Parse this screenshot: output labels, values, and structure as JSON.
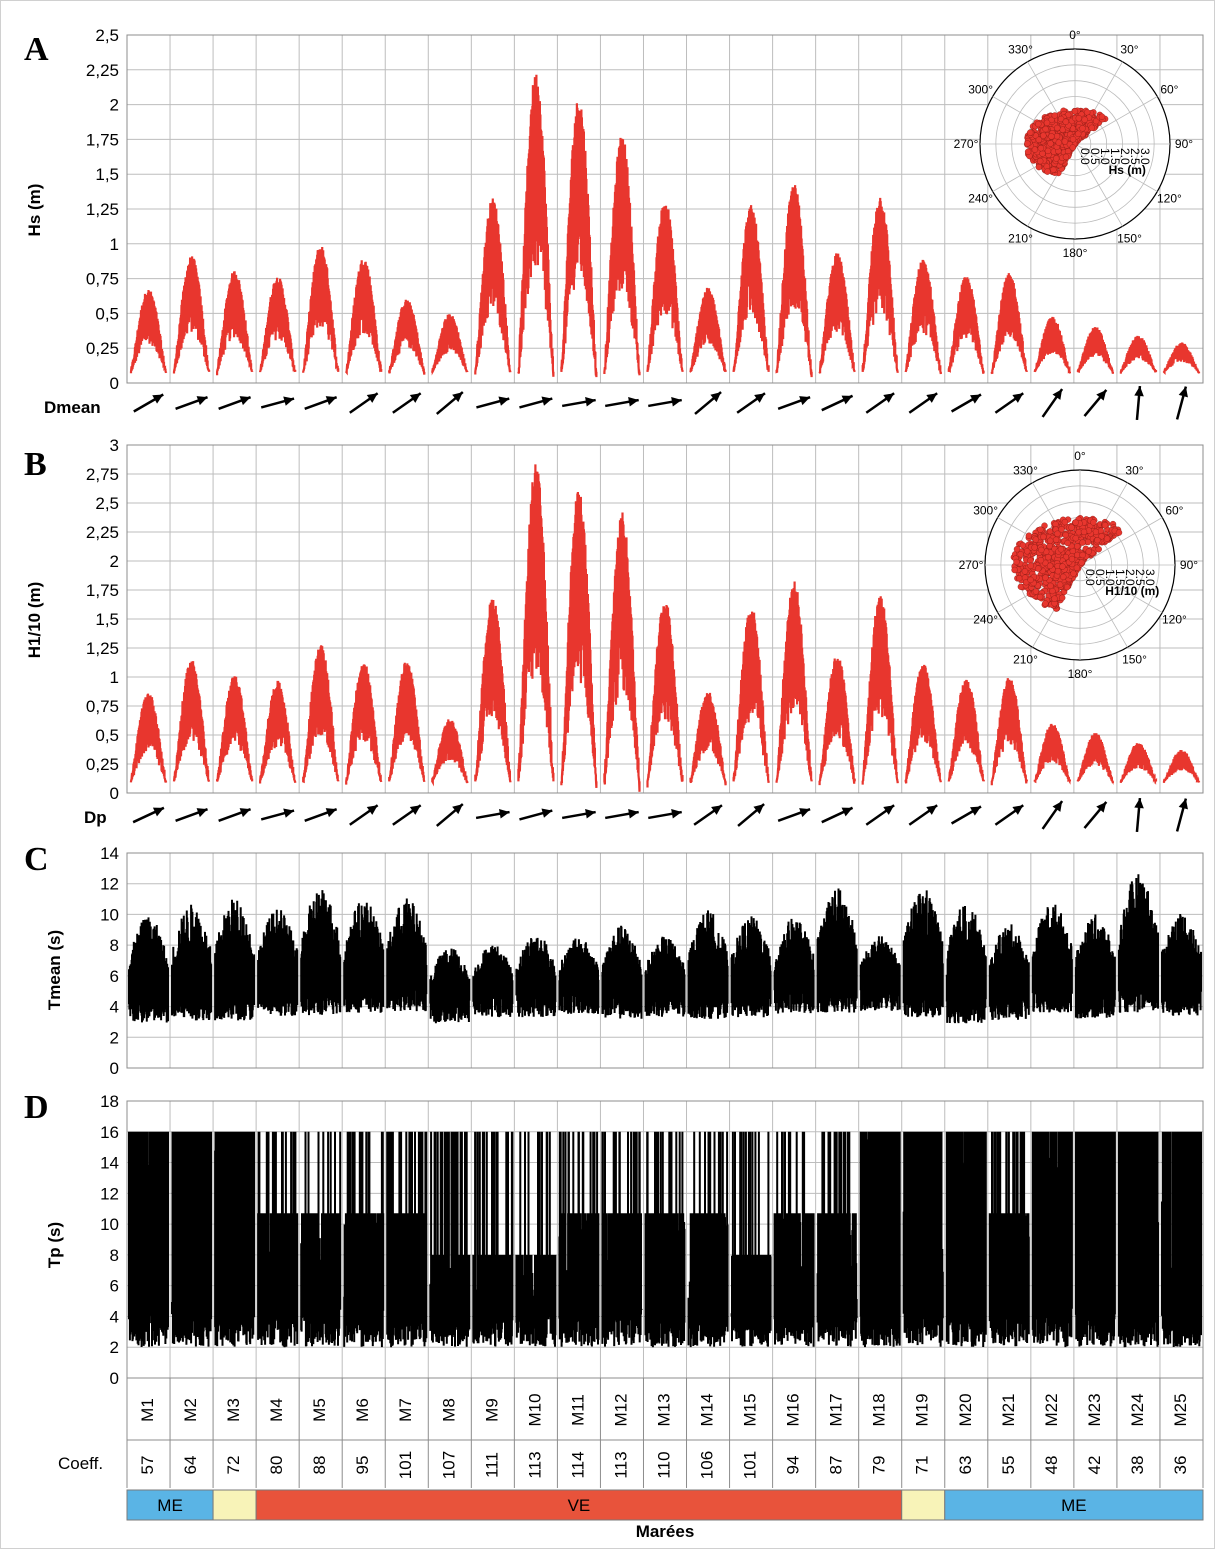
{
  "colors": {
    "wave_series": "#e8362e",
    "period_series": "#000000",
    "ME_band": "#5ab4e5",
    "VE_band": "#e8533b",
    "transition_band": "#f8f3b8"
  },
  "tides": [
    "M1",
    "M2",
    "M3",
    "M4",
    "M5",
    "M6",
    "M7",
    "M8",
    "M9",
    "M10",
    "M11",
    "M12",
    "M13",
    "M14",
    "M15",
    "M16",
    "M17",
    "M18",
    "M19",
    "M20",
    "M21",
    "M22",
    "M23",
    "M24",
    "M25"
  ],
  "coefficients": [
    "57",
    "64",
    "72",
    "80",
    "88",
    "95",
    "101",
    "107",
    "111",
    "113",
    "114",
    "113",
    "110",
    "106",
    "101",
    "94",
    "87",
    "79",
    "71",
    "63",
    "55",
    "48",
    "42",
    "38",
    "36"
  ],
  "coeff_label": "Coeff.",
  "xlabel": "Marées",
  "tide_bands": [
    {
      "label": "ME",
      "from": 0,
      "to": 2,
      "kind": "ME"
    },
    {
      "label": "",
      "from": 2,
      "to": 3,
      "kind": "transition"
    },
    {
      "label": "VE",
      "from": 3,
      "to": 18,
      "kind": "VE"
    },
    {
      "label": "",
      "from": 18,
      "to": 19,
      "kind": "transition"
    },
    {
      "label": "ME",
      "from": 19,
      "to": 25,
      "kind": "ME"
    }
  ],
  "panels": {
    "A": {
      "letter": "A",
      "ylabel": "Hs (m)",
      "direction_label": "Dmean",
      "yticks": [
        "0",
        "0,25",
        "0,5",
        "0,75",
        "1",
        "1,25",
        "1,5",
        "1,75",
        "2",
        "2,25",
        "2,5"
      ],
      "ymax": 2.5,
      "polar_label": "Hs (m)"
    },
    "B": {
      "letter": "B",
      "ylabel": "H1/10 (m)",
      "direction_label": "Dp",
      "yticks": [
        "0",
        "0,25",
        "0,5",
        "0,75",
        "1",
        "1,25",
        "1,5",
        "1,75",
        "2",
        "2,25",
        "2,5",
        "2,75",
        "3"
      ],
      "ymax": 3,
      "polar_label": "H1/10 (m)"
    },
    "C": {
      "letter": "C",
      "ylabel": "Tmean (s)",
      "yticks": [
        "0",
        "2",
        "4",
        "6",
        "8",
        "10",
        "12",
        "14"
      ],
      "ymax": 14
    },
    "D": {
      "letter": "D",
      "ylabel": "Tp (s)",
      "yticks": [
        "0",
        "2",
        "4",
        "6",
        "8",
        "10",
        "12",
        "14",
        "16",
        "18"
      ],
      "ymax": 18
    }
  },
  "polar": {
    "angle_labels": [
      "0°",
      "30°",
      "60°",
      "90°",
      "120°",
      "150°",
      "180°",
      "210°",
      "240°",
      "270°",
      "300°",
      "330°"
    ],
    "radial_labels": [
      "0.0",
      "0.5",
      "1.0",
      "1.5",
      "2.0",
      "2.5",
      "3.0"
    ]
  },
  "chart_data": [
    {
      "type": "line",
      "title": "",
      "ylabel": "Hs (m)",
      "ylim": [
        0,
        2.5
      ],
      "categories": [
        "M1",
        "M2",
        "M3",
        "M4",
        "M5",
        "M6",
        "M7",
        "M8",
        "M9",
        "M10",
        "M11",
        "M12",
        "M13",
        "M14",
        "M15",
        "M16",
        "M17",
        "M18",
        "M19",
        "M20",
        "M21",
        "M22",
        "M23",
        "M24",
        "M25"
      ],
      "series": [
        {
          "values_peak_per_tide": [
            0.65,
            0.88,
            0.78,
            0.74,
            0.96,
            0.87,
            0.58,
            0.48,
            1.28,
            2.15,
            1.98,
            1.72,
            1.27,
            0.66,
            1.23,
            1.38,
            0.9,
            1.3,
            0.86,
            0.74,
            0.76,
            0.46,
            0.39,
            0.33,
            0.28
          ]
        }
      ],
      "min_level": 0.08,
      "direction_arrows_deg": [
        60,
        70,
        70,
        75,
        70,
        55,
        55,
        50,
        75,
        75,
        80,
        80,
        80,
        50,
        55,
        70,
        65,
        55,
        55,
        60,
        55,
        35,
        40,
        5,
        15
      ],
      "grid": true
    },
    {
      "type": "line",
      "ylabel": "H1/10 (m)",
      "ylim": [
        0,
        3
      ],
      "categories": [
        "M1",
        "M2",
        "M3",
        "M4",
        "M5",
        "M6",
        "M7",
        "M8",
        "M9",
        "M10",
        "M11",
        "M12",
        "M13",
        "M14",
        "M15",
        "M16",
        "M17",
        "M18",
        "M19",
        "M20",
        "M21",
        "M22",
        "M23",
        "M24",
        "M25"
      ],
      "series": [
        {
          "values_peak_per_tide": [
            0.84,
            1.11,
            0.98,
            0.93,
            1.23,
            1.09,
            1.1,
            0.62,
            1.63,
            2.73,
            2.52,
            2.33,
            1.62,
            0.85,
            1.56,
            1.76,
            1.15,
            1.65,
            1.08,
            0.95,
            0.97,
            0.58,
            0.5,
            0.42,
            0.36
          ]
        }
      ],
      "min_level": 0.1,
      "direction_arrows_deg": [
        65,
        70,
        70,
        75,
        70,
        55,
        55,
        50,
        80,
        75,
        80,
        80,
        80,
        55,
        50,
        70,
        65,
        55,
        55,
        60,
        55,
        35,
        40,
        5,
        15
      ],
      "grid": true
    },
    {
      "type": "line",
      "ylabel": "Tmean (s)",
      "ylim": [
        0,
        14
      ],
      "categories": [
        "M1",
        "M2",
        "M3",
        "M4",
        "M5",
        "M6",
        "M7",
        "M8",
        "M9",
        "M10",
        "M11",
        "M12",
        "M13",
        "M14",
        "M15",
        "M16",
        "M17",
        "M18",
        "M19",
        "M20",
        "M21",
        "M22",
        "M23",
        "M24",
        "M25"
      ],
      "series": [
        {
          "values_max_per_tide": [
            9.9,
            10.7,
            11.1,
            10.4,
            11.8,
            11.0,
            11.1,
            7.9,
            8.1,
            8.8,
            8.5,
            9.3,
            8.6,
            10.3,
            9.9,
            9.8,
            11.8,
            8.6,
            11.8,
            10.8,
            9.4,
            10.8,
            10.0,
            12.7,
            10.2
          ],
          "values_min_per_tide": [
            2.9,
            3.1,
            3.1,
            3.4,
            3.4,
            3.6,
            3.7,
            2.9,
            3.3,
            3.3,
            3.5,
            3.2,
            3.3,
            3.2,
            3.3,
            3.5,
            3.6,
            3.7,
            3.3,
            2.9,
            3.1,
            3.5,
            3.2,
            3.6,
            3.4
          ]
        }
      ],
      "grid": true
    },
    {
      "type": "line",
      "ylabel": "Tp (s)",
      "ylim": [
        0,
        18
      ],
      "categories": [
        "M1",
        "M2",
        "M3",
        "M4",
        "M5",
        "M6",
        "M7",
        "M8",
        "M9",
        "M10",
        "M11",
        "M12",
        "M13",
        "M14",
        "M15",
        "M16",
        "M17",
        "M18",
        "M19",
        "M20",
        "M21",
        "M22",
        "M23",
        "M24",
        "M25"
      ],
      "series": [
        {
          "values_plateau_per_tide": [
            16,
            16,
            16,
            10.7,
            10.7,
            10.7,
            10.7,
            8.0,
            8.0,
            8.0,
            10.7,
            10.7,
            10.7,
            10.7,
            8.0,
            10.7,
            10.7,
            16,
            16,
            16,
            10.7,
            16,
            16,
            16,
            16
          ],
          "values_max": 16,
          "values_min": 2
        }
      ],
      "grid": true
    }
  ]
}
